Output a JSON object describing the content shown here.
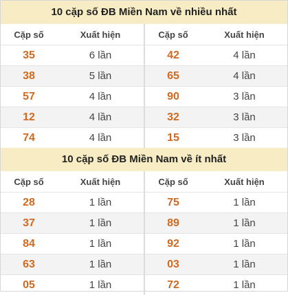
{
  "section1": {
    "title": "10 cặp số ĐB Miền Nam về nhiều nhất",
    "left": {
      "header": {
        "pair": "Cặp số",
        "count": "Xuất hiện"
      },
      "rows": [
        {
          "pair": "35",
          "count": "6 lần"
        },
        {
          "pair": "38",
          "count": "5 lần"
        },
        {
          "pair": "57",
          "count": "4 lần"
        },
        {
          "pair": "12",
          "count": "4 lần"
        },
        {
          "pair": "74",
          "count": "4 lần"
        }
      ]
    },
    "right": {
      "header": {
        "pair": "Cặp số",
        "count": "Xuất hiện"
      },
      "rows": [
        {
          "pair": "42",
          "count": "4 lần"
        },
        {
          "pair": "65",
          "count": "4 lần"
        },
        {
          "pair": "90",
          "count": "3 lần"
        },
        {
          "pair": "32",
          "count": "3 lần"
        },
        {
          "pair": "15",
          "count": "3 lần"
        }
      ]
    }
  },
  "section2": {
    "title": "10 cặp số ĐB Miền Nam về ít nhất",
    "left": {
      "header": {
        "pair": "Cặp số",
        "count": "Xuất hiện"
      },
      "rows": [
        {
          "pair": "28",
          "count": "1 lần"
        },
        {
          "pair": "37",
          "count": "1 lần"
        },
        {
          "pair": "84",
          "count": "1 lần"
        },
        {
          "pair": "63",
          "count": "1 lần"
        },
        {
          "pair": "05",
          "count": "1 lần"
        }
      ]
    },
    "right": {
      "header": {
        "pair": "Cặp số",
        "count": "Xuất hiện"
      },
      "rows": [
        {
          "pair": "75",
          "count": "1 lần"
        },
        {
          "pair": "89",
          "count": "1 lần"
        },
        {
          "pair": "92",
          "count": "1 lần"
        },
        {
          "pair": "03",
          "count": "1 lần"
        },
        {
          "pair": "72",
          "count": "1 lần"
        }
      ]
    }
  },
  "colors": {
    "title_bg": "#f7ecc3",
    "pair_number": "#d2691e",
    "alt_row_bg": "#f3f3f3"
  }
}
